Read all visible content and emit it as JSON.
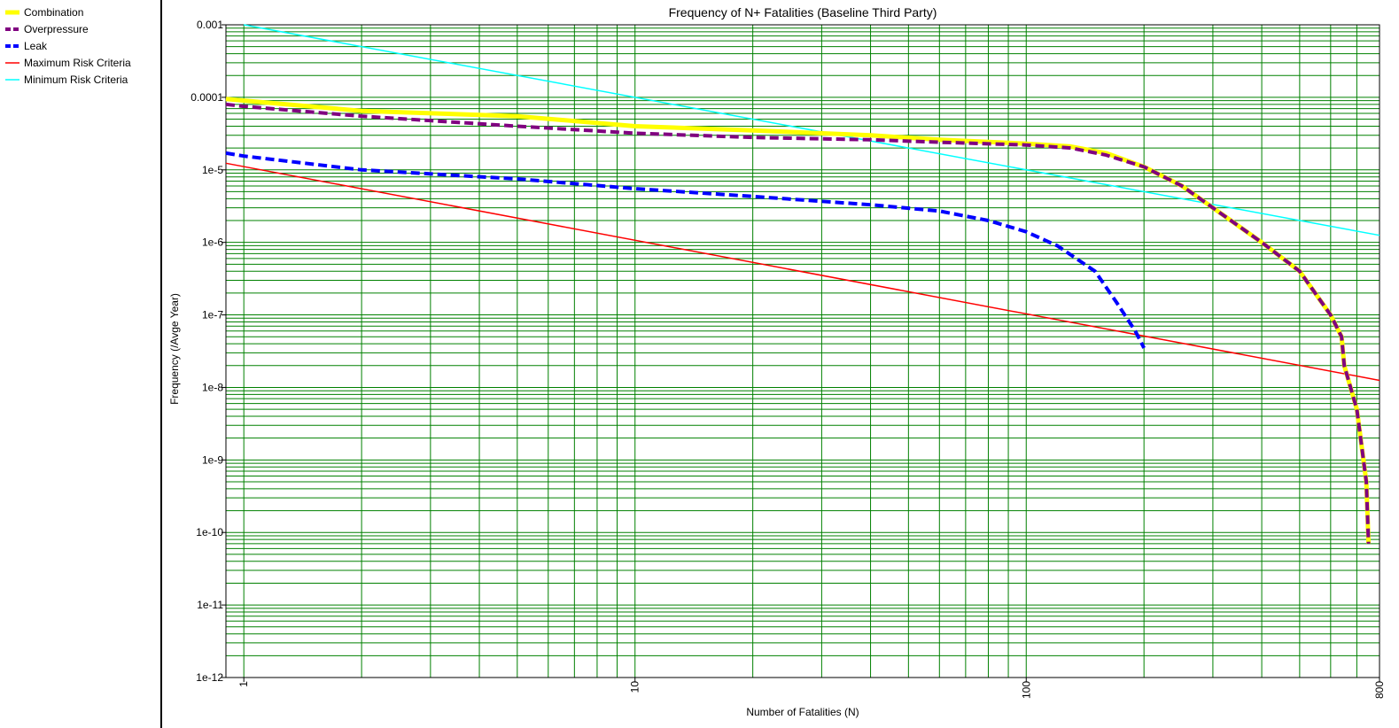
{
  "chart_data": {
    "type": "line",
    "title": "Frequency of N+ Fatalities (Baseline Third Party)",
    "xlabel": "Number of Fatalities (N)",
    "ylabel": "Frequency (/Avge Year)",
    "xscale": "log",
    "yscale": "log",
    "xlim": [
      0.9,
      800
    ],
    "ylim": [
      1e-12,
      0.001
    ],
    "x_ticks": [
      {
        "value": 1,
        "label": "1"
      },
      {
        "value": 10,
        "label": "10"
      },
      {
        "value": 100,
        "label": "100"
      },
      {
        "value": 800,
        "label": "800"
      }
    ],
    "y_ticks": [
      {
        "value": 0.001,
        "label": "0.001"
      },
      {
        "value": 0.0001,
        "label": "0.0001"
      },
      {
        "value": 1e-05,
        "label": "1e-5"
      },
      {
        "value": 1e-06,
        "label": "1e-6"
      },
      {
        "value": 1e-07,
        "label": "1e-7"
      },
      {
        "value": 1e-08,
        "label": "1e-8"
      },
      {
        "value": 1e-09,
        "label": "1e-9"
      },
      {
        "value": 1e-10,
        "label": "1e-10"
      },
      {
        "value": 1e-11,
        "label": "1e-11"
      },
      {
        "value": 1e-12,
        "label": "1e-12"
      }
    ],
    "grid": true,
    "grid_color": "#008000",
    "legend_position": "left panel",
    "series": [
      {
        "name": "Combination",
        "color": "#ffff00",
        "style": "solid",
        "width": 5,
        "x": [
          0.9,
          1,
          2,
          5,
          10,
          20,
          40,
          60,
          100,
          130,
          160,
          200,
          250,
          300,
          400,
          500,
          600,
          640,
          650,
          700,
          740,
          750
        ],
        "y": [
          9.5e-05,
          9e-05,
          6.5e-05,
          5.5e-05,
          4e-05,
          3.5e-05,
          3e-05,
          2.6e-05,
          2.3e-05,
          2.1e-05,
          1.7e-05,
          1.1e-05,
          6e-06,
          3e-06,
          1e-06,
          4e-07,
          1e-07,
          5e-08,
          2e-08,
          5e-09,
          5e-10,
          7e-11
        ]
      },
      {
        "name": "Overpressure",
        "color": "#800080",
        "style": "dashed",
        "width": 4,
        "x": [
          0.9,
          1,
          2,
          5,
          10,
          20,
          40,
          60,
          100,
          130,
          160,
          200,
          250,
          300,
          400,
          500,
          600,
          640,
          650,
          700,
          740,
          750
        ],
        "y": [
          8e-05,
          7.5e-05,
          5.5e-05,
          4e-05,
          3.2e-05,
          2.8e-05,
          2.6e-05,
          2.4e-05,
          2.2e-05,
          2e-05,
          1.6e-05,
          1.1e-05,
          6e-06,
          3e-06,
          1e-06,
          4e-07,
          1e-07,
          5e-08,
          2e-08,
          5e-09,
          5e-10,
          7e-11
        ]
      },
      {
        "name": "Leak",
        "color": "#0000ff",
        "style": "dashed",
        "width": 4,
        "x": [
          0.9,
          1,
          2,
          5,
          10,
          20,
          40,
          60,
          80,
          100,
          120,
          150,
          170,
          190,
          200
        ],
        "y": [
          1.7e-05,
          1.55e-05,
          1e-05,
          7.5e-06,
          5.5e-06,
          4.3e-06,
          3.3e-06,
          2.7e-06,
          2e-06,
          1.4e-06,
          9e-07,
          4e-07,
          1.5e-07,
          6e-08,
          3.5e-08
        ]
      },
      {
        "name": "Maximum Risk Criteria",
        "color": "#ff0000",
        "style": "solid",
        "width": 1.5,
        "x": [
          0.9,
          800
        ],
        "y": [
          1.235e-05,
          1.25e-08
        ]
      },
      {
        "name": "Minimum Risk Criteria",
        "color": "#00ffff",
        "style": "solid",
        "width": 1.5,
        "x": [
          1,
          800
        ],
        "y": [
          0.001,
          1.25e-06
        ]
      }
    ]
  }
}
